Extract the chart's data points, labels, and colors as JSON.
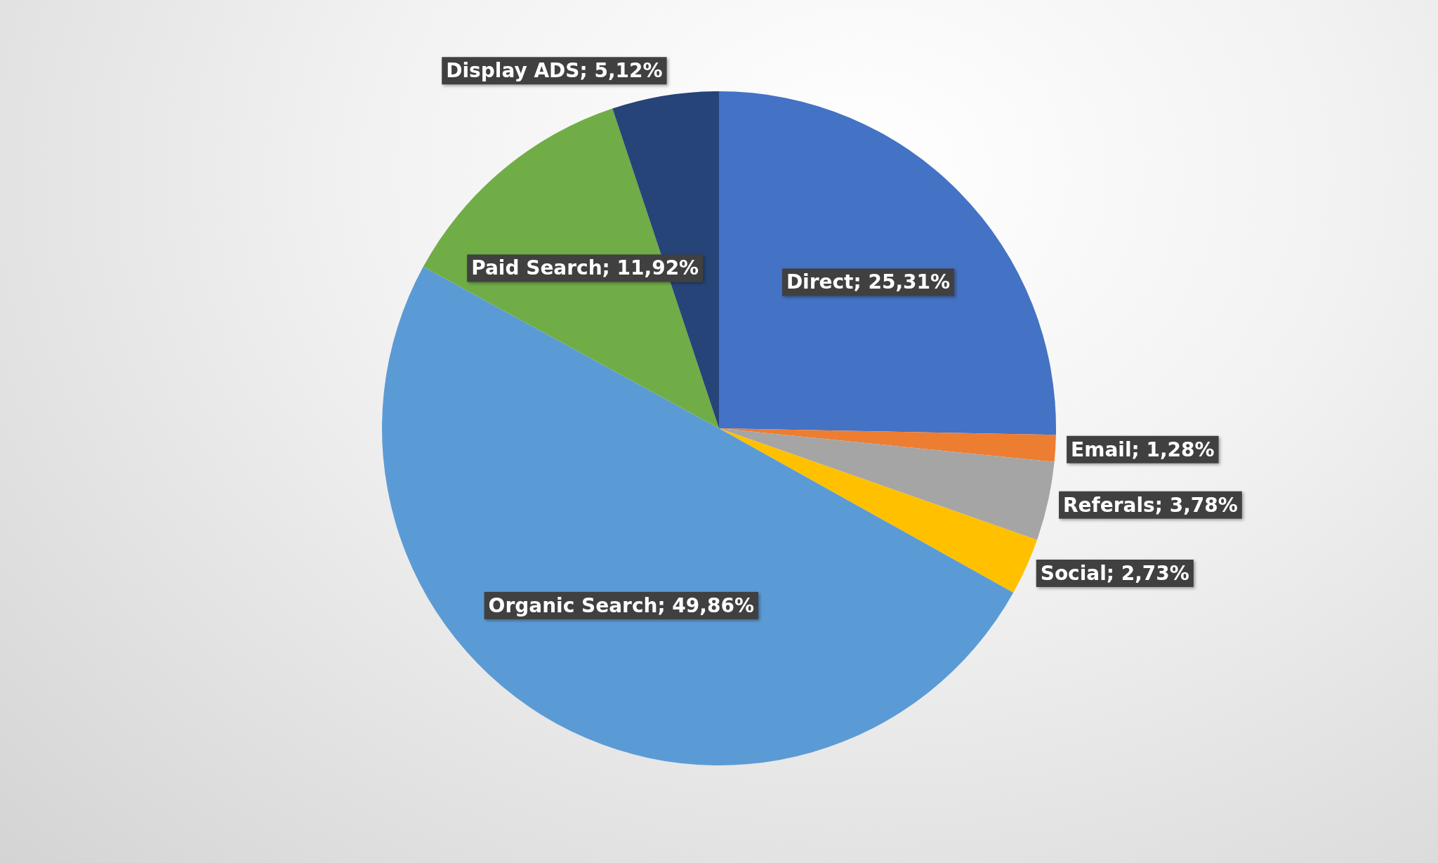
{
  "chart_data": {
    "type": "pie",
    "categories": [
      "Direct",
      "Email",
      "Referals",
      "Social",
      "Organic Search",
      "Paid Search",
      "Display ADS"
    ],
    "values": [
      25.31,
      1.28,
      3.78,
      2.73,
      49.86,
      11.92,
      5.12
    ],
    "colors": [
      "#4472c4",
      "#ed7d31",
      "#a5a5a5",
      "#ffc000",
      "#5b9bd5",
      "#70ad47",
      "#264478"
    ],
    "value_labels": [
      "25,31%",
      "1,28%",
      "3,78%",
      "2,73%",
      "49,86%",
      "11,92%",
      "5,12%"
    ]
  }
}
